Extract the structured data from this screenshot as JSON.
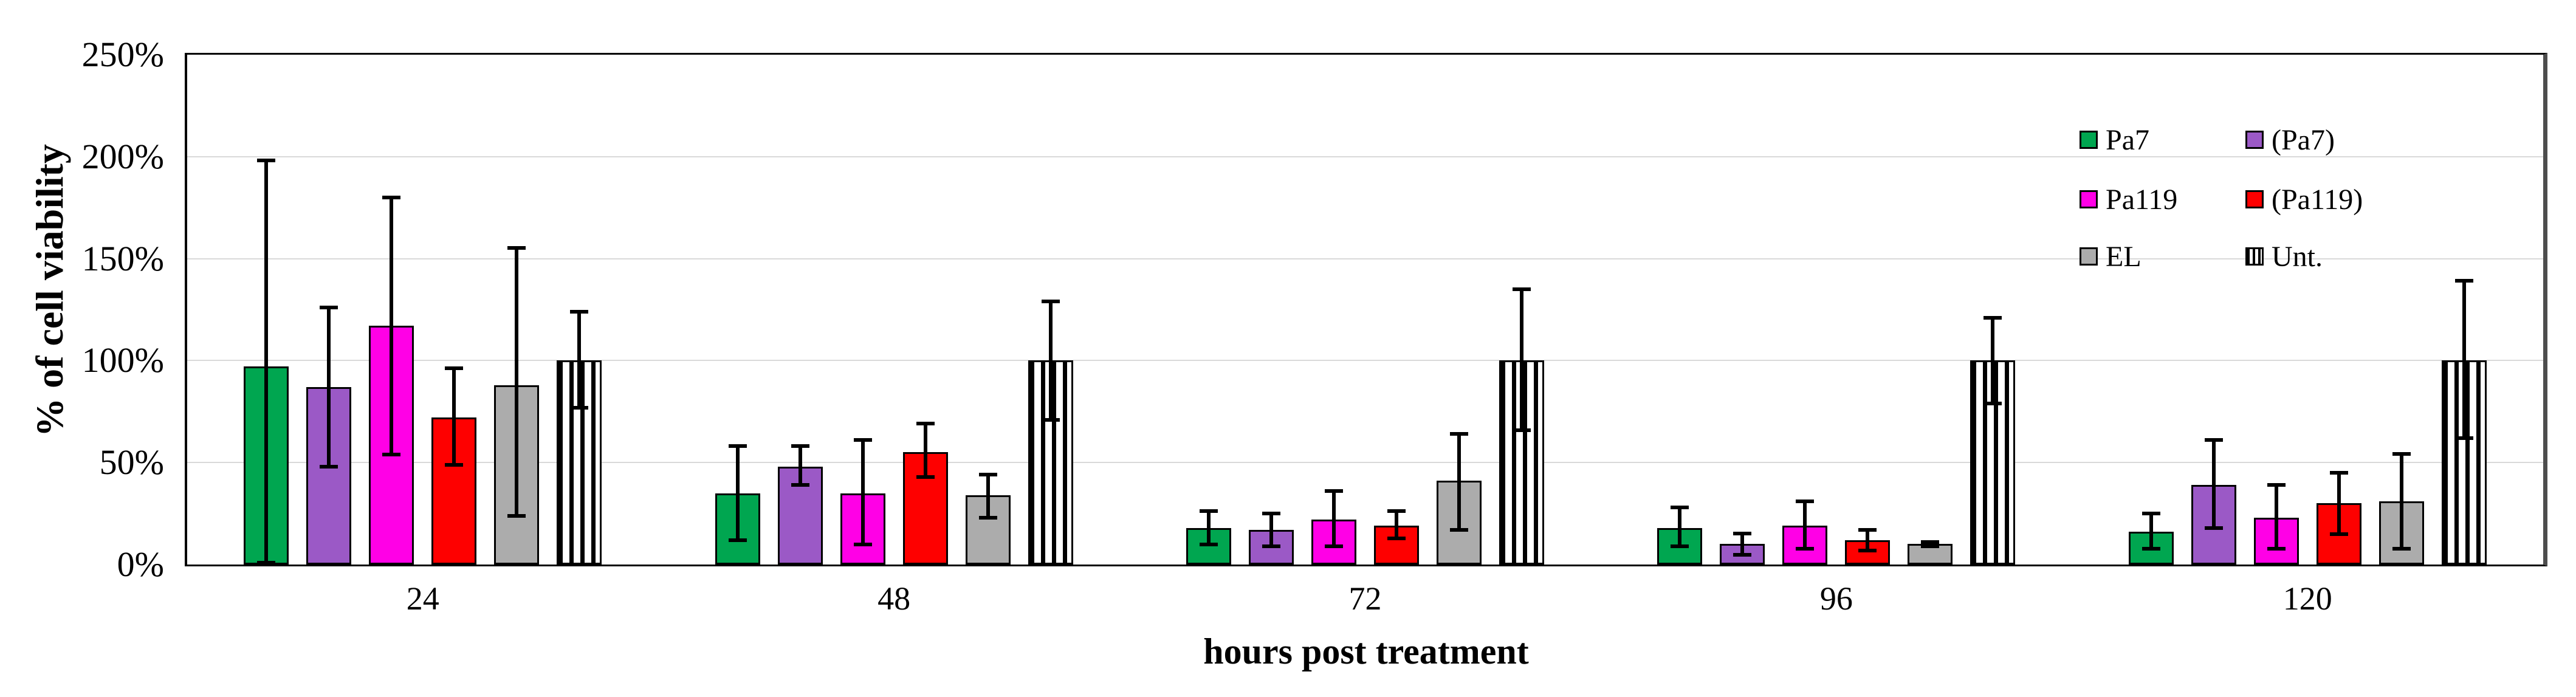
{
  "axes": {
    "y_title": "% of cell viability",
    "x_title": "hours post treatment",
    "y_ticks": [
      {
        "value": 0,
        "label": "0%"
      },
      {
        "value": 50,
        "label": "50%"
      },
      {
        "value": 100,
        "label": "100%"
      },
      {
        "value": 150,
        "label": "150%"
      },
      {
        "value": 200,
        "label": "200%"
      },
      {
        "value": 250,
        "label": "250%"
      }
    ]
  },
  "style": {
    "grid_color": "#d9d9d9",
    "axis_color": "#000000",
    "right_frame_color": "#4d4d4d",
    "error_bar_color": "#000000",
    "background": "#ffffff"
  },
  "legend": {
    "rows": [
      [
        "Pa7",
        "(Pa7)"
      ],
      [
        "Pa119",
        "(Pa119)"
      ],
      [
        "EL",
        "Unt."
      ]
    ]
  },
  "chart_data": {
    "type": "bar",
    "title": "",
    "xlabel": "hours post treatment",
    "ylabel": "% of cell viability",
    "categories": [
      "24",
      "48",
      "72",
      "96",
      "120"
    ],
    "ylim": [
      0,
      250
    ],
    "y_tick_step": 50,
    "y_unit": "%",
    "grid": true,
    "legend_position": "top-right-inside",
    "error_bars": true,
    "series": [
      {
        "name": "Pa7",
        "color": "#00a650",
        "pattern": "solid",
        "values": [
          97,
          35,
          18,
          18,
          16
        ],
        "error_high": [
          199,
          59,
          27,
          29,
          26
        ],
        "error_low": [
          0,
          11,
          9,
          8,
          7
        ]
      },
      {
        "name": "(Pa7)",
        "color": "#9b59c6",
        "pattern": "solid",
        "values": [
          87,
          48,
          17,
          10,
          39
        ],
        "error_high": [
          127,
          59,
          26,
          16,
          62
        ],
        "error_low": [
          47,
          38,
          8,
          4,
          17
        ]
      },
      {
        "name": "Pa119",
        "color": "#ff00e6",
        "pattern": "solid",
        "values": [
          117,
          35,
          22,
          19,
          23
        ],
        "error_high": [
          181,
          62,
          37,
          32,
          40
        ],
        "error_low": [
          53,
          9,
          8,
          7,
          7
        ]
      },
      {
        "name": "(Pa119)",
        "color": "#fe0000",
        "pattern": "solid",
        "values": [
          72,
          55,
          19,
          12,
          30
        ],
        "error_high": [
          97,
          70,
          27,
          18,
          46
        ],
        "error_low": [
          48,
          42,
          12,
          6,
          14
        ]
      },
      {
        "name": "EL",
        "color": "#acacac",
        "pattern": "solid",
        "values": [
          88,
          34,
          41,
          10,
          31
        ],
        "error_high": [
          156,
          45,
          65,
          12,
          55
        ],
        "error_low": [
          23,
          22,
          16,
          8,
          7
        ]
      },
      {
        "name": "Unt.",
        "color": "#ffffff",
        "pattern": "vertical-stripes",
        "values": [
          100,
          100,
          100,
          100,
          100
        ],
        "error_high": [
          125,
          130,
          136,
          122,
          140
        ],
        "error_low": [
          76,
          70,
          65,
          78,
          61
        ]
      }
    ]
  }
}
